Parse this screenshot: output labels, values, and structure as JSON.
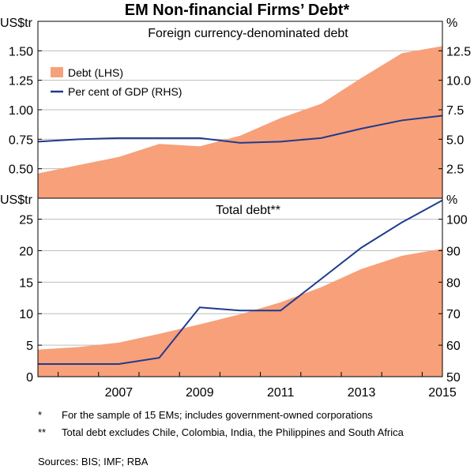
{
  "title": "EM Non-financial Firms’ Debt*",
  "chart_data": [
    {
      "type": "area",
      "title": "Foreign currency-denominated debt",
      "left_unit": "US$tr",
      "right_unit": "%",
      "x": [
        2005.5,
        2006.5,
        2007.5,
        2008.5,
        2009.5,
        2010.5,
        2011.5,
        2012.5,
        2013.5,
        2014.5,
        2015.5
      ],
      "series": [
        {
          "name": "Debt (LHS)",
          "axis": "left",
          "type": "area",
          "color": "#F7A07A",
          "values": [
            0.46,
            0.53,
            0.6,
            0.71,
            0.69,
            0.78,
            0.93,
            1.05,
            1.27,
            1.48,
            1.54
          ]
        },
        {
          "name": "Per cent of GDP (RHS)",
          "axis": "right",
          "type": "line",
          "color": "#1F3A8E",
          "values": [
            4.8,
            5.0,
            5.1,
            5.1,
            5.1,
            4.7,
            4.8,
            5.1,
            5.9,
            6.6,
            7.0
          ]
        }
      ],
      "ylim_left": [
        0.25,
        1.75
      ],
      "ylim_right": [
        0,
        15
      ],
      "left_ticks": [
        "0.50",
        "0.75",
        "1.00",
        "1.25",
        "1.50"
      ],
      "right_ticks": [
        "2.5",
        "5.0",
        "7.5",
        "10.0",
        "12.5"
      ]
    },
    {
      "type": "area",
      "title": "Total debt**",
      "left_unit": "US$tr",
      "right_unit": "%",
      "x": [
        2005.5,
        2006.5,
        2007.5,
        2008.5,
        2009.5,
        2010.5,
        2011.5,
        2012.5,
        2013.5,
        2014.5,
        2015.5
      ],
      "series": [
        {
          "name": "Debt (LHS)",
          "axis": "left",
          "type": "area",
          "color": "#F7A07A",
          "values": [
            4.3,
            4.7,
            5.4,
            6.8,
            8.3,
            9.9,
            11.8,
            14.2,
            17.1,
            19.2,
            20.3
          ]
        },
        {
          "name": "Per cent of GDP (RHS)",
          "axis": "right",
          "type": "line",
          "color": "#1F3A8E",
          "values": [
            54,
            54,
            54,
            56,
            72,
            71,
            71,
            81,
            91,
            99,
            106
          ]
        }
      ],
      "ylim_left": [
        0,
        28.33
      ],
      "ylim_right": [
        50,
        106.67
      ],
      "left_ticks": [
        "0",
        "5",
        "10",
        "15",
        "20",
        "25"
      ],
      "right_ticks": [
        "50",
        "60",
        "70",
        "80",
        "90",
        "100"
      ],
      "x_ticks": [
        "2007",
        "2009",
        "2011",
        "2013",
        "2015"
      ]
    }
  ],
  "legend": {
    "items": [
      {
        "label": "Debt (LHS)",
        "color": "#F7A07A"
      },
      {
        "label": "Per cent of GDP (RHS)",
        "color": "#1F3A8E"
      }
    ]
  },
  "notes": [
    {
      "mark": "*",
      "text": "For the sample of 15 EMs; includes government-owned corporations"
    },
    {
      "mark": "**",
      "text": "Total debt excludes Chile, Colombia, India, the Philippines and South Africa"
    }
  ],
  "sources": "Sources:  BIS; IMF; RBA"
}
